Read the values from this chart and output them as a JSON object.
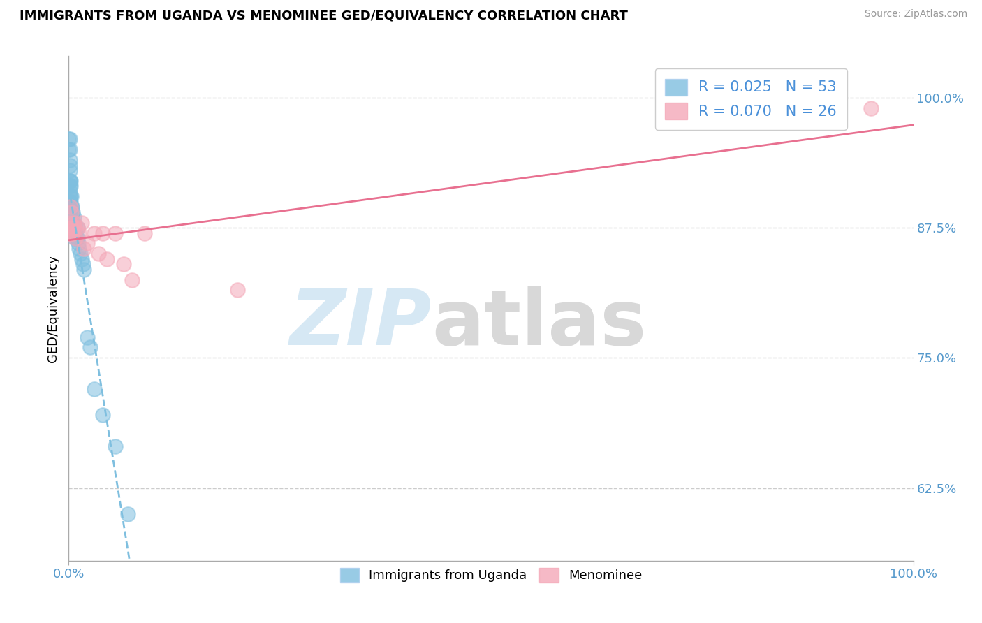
{
  "title": "IMMIGRANTS FROM UGANDA VS MENOMINEE GED/EQUIVALENCY CORRELATION CHART",
  "source": "Source: ZipAtlas.com",
  "ylabel": "GED/Equivalency",
  "ytick_labels": [
    "62.5%",
    "75.0%",
    "87.5%",
    "100.0%"
  ],
  "ytick_values": [
    0.625,
    0.75,
    0.875,
    1.0
  ],
  "legend_labels": [
    "Immigrants from Uganda",
    "Menominee"
  ],
  "R_blue": 0.025,
  "N_blue": 53,
  "R_pink": 0.07,
  "N_pink": 26,
  "blue_color": "#7fbfdf",
  "pink_color": "#f4a8b8",
  "blue_line_color": "#7fbfdf",
  "pink_line_color": "#e87090",
  "blue_scatter_x": [
    0.0,
    0.0,
    0.001,
    0.001,
    0.001,
    0.001,
    0.001,
    0.001,
    0.001,
    0.001,
    0.001,
    0.001,
    0.001,
    0.002,
    0.002,
    0.002,
    0.002,
    0.002,
    0.002,
    0.002,
    0.002,
    0.003,
    0.003,
    0.003,
    0.003,
    0.003,
    0.004,
    0.004,
    0.004,
    0.005,
    0.005,
    0.005,
    0.006,
    0.006,
    0.006,
    0.007,
    0.007,
    0.008,
    0.009,
    0.01,
    0.01,
    0.011,
    0.012,
    0.014,
    0.015,
    0.017,
    0.018,
    0.022,
    0.025,
    0.03,
    0.04,
    0.055,
    0.07
  ],
  "blue_scatter_y": [
    0.96,
    0.95,
    0.96,
    0.95,
    0.94,
    0.935,
    0.93,
    0.92,
    0.92,
    0.915,
    0.91,
    0.905,
    0.9,
    0.92,
    0.915,
    0.905,
    0.9,
    0.895,
    0.89,
    0.885,
    0.875,
    0.905,
    0.895,
    0.89,
    0.88,
    0.87,
    0.895,
    0.885,
    0.875,
    0.89,
    0.882,
    0.87,
    0.885,
    0.875,
    0.87,
    0.878,
    0.865,
    0.87,
    0.865,
    0.875,
    0.865,
    0.86,
    0.855,
    0.85,
    0.845,
    0.84,
    0.835,
    0.77,
    0.76,
    0.72,
    0.695,
    0.665,
    0.6
  ],
  "pink_scatter_x": [
    0.001,
    0.001,
    0.002,
    0.002,
    0.003,
    0.003,
    0.004,
    0.005,
    0.006,
    0.007,
    0.008,
    0.01,
    0.012,
    0.015,
    0.018,
    0.022,
    0.03,
    0.035,
    0.04,
    0.045,
    0.055,
    0.065,
    0.075,
    0.09,
    0.2,
    0.95
  ],
  "pink_scatter_y": [
    0.88,
    0.87,
    0.895,
    0.875,
    0.89,
    0.87,
    0.875,
    0.87,
    0.88,
    0.875,
    0.865,
    0.875,
    0.87,
    0.88,
    0.855,
    0.86,
    0.87,
    0.85,
    0.87,
    0.845,
    0.87,
    0.84,
    0.825,
    0.87,
    0.815,
    0.99
  ],
  "xlim": [
    0.0,
    1.0
  ],
  "ylim": [
    0.555,
    1.04
  ]
}
